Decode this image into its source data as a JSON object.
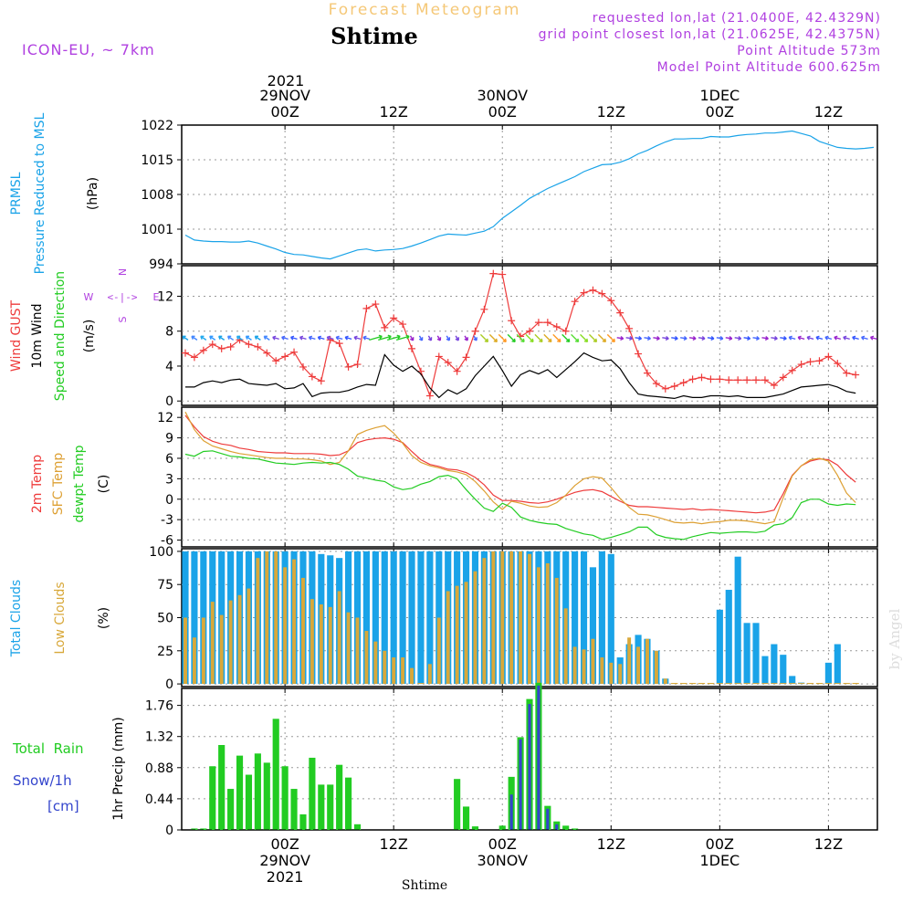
{
  "header": {
    "title": "Forecast Meteogram",
    "location": "Shtime",
    "model": "ICON-EU, ~ 7km",
    "requested": "requested lon,lat (21.0400E, 42.4329N)",
    "grid_point": "grid point closest lon,lat (21.0625E, 42.4375N)",
    "point_altitude": "Point Altitude 573m",
    "model_altitude": "Model Point Altitude 600.625m",
    "footer_location": "Shtime",
    "watermark": "by Angel"
  },
  "time_axis": {
    "top_year": "2021",
    "bottom_year": "2021",
    "ticks": [
      {
        "idx": 11,
        "hour": "00Z",
        "date": "29NOV"
      },
      {
        "idx": 23,
        "hour": "12Z",
        "date": ""
      },
      {
        "idx": 35,
        "hour": "00Z",
        "date": "30NOV"
      },
      {
        "idx": 47,
        "hour": "12Z",
        "date": ""
      },
      {
        "idx": 59,
        "hour": "00Z",
        "date": "1DEC"
      },
      {
        "idx": 71,
        "hour": "12Z",
        "date": ""
      }
    ]
  },
  "colors": {
    "pressure": "#1aa3e8",
    "gust": "#ee3b3b",
    "wind": "#000000",
    "temp2m": "#ee3b3b",
    "sfc_temp": "#dda033",
    "dewpt": "#22cc22",
    "total_clouds": "#1aa3e8",
    "low_clouds": "#d8a83a",
    "rain": "#22cc22",
    "snow": "#3344cc",
    "purple": "#b040e0",
    "title_orange": "#f5c878"
  },
  "chart_data": [
    {
      "type": "line",
      "panel": "pressure",
      "label_lines": [
        "PRMSL",
        "Pressure Reduced to MSL"
      ],
      "unit": "(hPa)",
      "ylim": [
        994,
        1022
      ],
      "yticks": [
        994,
        1001,
        1008,
        1015,
        1022
      ],
      "x": "hour index 0..76 (hourly from 28NOV 13Z)",
      "series": [
        {
          "name": "PRMSL",
          "color": "#1aa3e8",
          "values": [
            999.8,
            998.8,
            998.6,
            998.5,
            998.5,
            998.4,
            998.4,
            998.6,
            998.2,
            997.6,
            997.0,
            996.3,
            995.9,
            995.8,
            995.5,
            995.2,
            995.0,
            995.6,
            996.2,
            996.8,
            997.0,
            996.6,
            996.8,
            996.9,
            997.1,
            997.6,
            998.2,
            998.9,
            999.6,
            1000.0,
            999.9,
            999.8,
            1000.2,
            1000.6,
            1001.5,
            1003.2,
            1004.5,
            1005.8,
            1007.2,
            1008.2,
            1009.2,
            1010.0,
            1010.8,
            1011.6,
            1012.6,
            1013.3,
            1014.0,
            1014.1,
            1014.5,
            1015.2,
            1016.2,
            1016.9,
            1017.8,
            1018.6,
            1019.2,
            1019.2,
            1019.3,
            1019.3,
            1019.7,
            1019.6,
            1019.6,
            1019.9,
            1020.1,
            1020.2,
            1020.4,
            1020.4,
            1020.6,
            1020.8,
            1020.3,
            1019.8,
            1018.7,
            1018.1,
            1017.5,
            1017.3,
            1017.2,
            1017.3,
            1017.5
          ]
        }
      ]
    },
    {
      "type": "line",
      "panel": "wind",
      "label_lines": [
        "Wind GUST",
        "10m Wind",
        "Speed and Direction"
      ],
      "unit": "(m/s)",
      "compass": {
        "n": "N",
        "s": "S",
        "w": "W",
        "e": "E",
        "arrows": "<-|->"
      },
      "ylim": [
        -0.5,
        15.5
      ],
      "yticks": [
        0,
        4,
        8,
        12
      ],
      "series": [
        {
          "name": "Wind GUST",
          "color": "#ee3b3b",
          "values": [
            5.5,
            5.0,
            5.8,
            6.5,
            6.0,
            6.2,
            7.0,
            6.5,
            6.2,
            5.5,
            4.6,
            5.1,
            5.6,
            3.9,
            2.8,
            2.3,
            7.0,
            6.6,
            3.9,
            4.2,
            10.6,
            11.1,
            8.4,
            9.5,
            8.8,
            6.0,
            3.4,
            0.6,
            5.1,
            4.4,
            3.4,
            5.0,
            8.0,
            10.5,
            14.6,
            14.5,
            9.2,
            7.4,
            8.0,
            9.0,
            9.0,
            8.5,
            8.0,
            11.4,
            12.4,
            12.7,
            12.3,
            11.5,
            10.1,
            8.3,
            5.4,
            3.2,
            2.0,
            1.4,
            1.7,
            2.1,
            2.5,
            2.7,
            2.5,
            2.5,
            2.4,
            2.4,
            2.4,
            2.4,
            2.4,
            1.8,
            2.7,
            3.5,
            4.2,
            4.5,
            4.6,
            5.1,
            4.3,
            3.2,
            3.0
          ]
        },
        {
          "name": "10m Wind",
          "color": "#000000",
          "values": [
            1.6,
            1.6,
            2.1,
            2.3,
            2.1,
            2.4,
            2.5,
            2.0,
            1.9,
            1.8,
            2.0,
            1.4,
            1.5,
            2.0,
            0.5,
            0.9,
            1.0,
            1.0,
            1.2,
            1.6,
            1.9,
            1.8,
            5.3,
            4.1,
            3.4,
            4.0,
            3.1,
            1.5,
            0.4,
            1.3,
            0.8,
            1.4,
            2.9,
            4.0,
            5.1,
            3.5,
            1.7,
            3.0,
            3.5,
            3.1,
            3.6,
            2.7,
            3.6,
            4.5,
            5.5,
            5.0,
            4.6,
            4.7,
            3.7,
            2.1,
            0.8,
            0.6,
            0.5,
            0.4,
            0.3,
            0.6,
            0.4,
            0.4,
            0.6,
            0.6,
            0.5,
            0.6,
            0.4,
            0.4,
            0.4,
            0.6,
            0.8,
            1.2,
            1.6,
            1.7,
            1.8,
            1.9,
            1.6,
            1.1,
            0.9
          ]
        }
      ]
    },
    {
      "type": "line",
      "panel": "temperature",
      "label_lines": [
        "2m Temp",
        "SFC Temp",
        "dewpt Temp"
      ],
      "unit": "(C)",
      "ylim": [
        -7,
        13.5
      ],
      "yticks": [
        -6,
        -3,
        0,
        3,
        6,
        9,
        12
      ],
      "series": [
        {
          "name": "2m Temp",
          "color": "#ee3b3b",
          "values": [
            12.3,
            10.6,
            9.2,
            8.5,
            8.1,
            7.9,
            7.5,
            7.3,
            7.0,
            6.9,
            6.8,
            6.8,
            6.7,
            6.7,
            6.7,
            6.6,
            6.4,
            6.5,
            7.1,
            8.3,
            8.7,
            8.9,
            9.0,
            8.8,
            8.3,
            7.0,
            5.8,
            5.1,
            4.8,
            4.4,
            4.3,
            3.9,
            3.2,
            2.1,
            0.6,
            -0.2,
            -0.2,
            -0.3,
            -0.5,
            -0.6,
            -0.4,
            0.0,
            0.5,
            1.0,
            1.3,
            1.4,
            1.1,
            0.4,
            -0.3,
            -0.9,
            -1.1,
            -1.1,
            -1.2,
            -1.3,
            -1.4,
            -1.5,
            -1.4,
            -1.6,
            -1.5,
            -1.6,
            -1.7,
            -1.8,
            -1.9,
            -2.0,
            -1.9,
            -1.6,
            0.8,
            3.5,
            4.9,
            5.6,
            5.9,
            5.8,
            5.0,
            3.6,
            2.5
          ]
        },
        {
          "name": "SFC Temp",
          "color": "#dda033",
          "values": [
            12.8,
            10.2,
            8.6,
            7.8,
            7.4,
            7.0,
            6.7,
            6.5,
            6.3,
            6.1,
            6.0,
            6.0,
            5.9,
            5.9,
            5.8,
            5.6,
            5.1,
            5.4,
            7.1,
            9.5,
            10.1,
            10.5,
            10.8,
            9.7,
            8.2,
            6.4,
            5.4,
            4.9,
            4.6,
            4.2,
            4.0,
            3.6,
            2.6,
            1.2,
            -0.4,
            -1.5,
            -0.3,
            -0.6,
            -1.0,
            -1.2,
            -1.1,
            -0.5,
            0.6,
            2.0,
            3.0,
            3.3,
            3.1,
            1.7,
            0.1,
            -1.2,
            -2.2,
            -2.3,
            -2.6,
            -3.0,
            -3.4,
            -3.5,
            -3.4,
            -3.6,
            -3.4,
            -3.3,
            -3.1,
            -3.1,
            -3.2,
            -3.4,
            -3.6,
            -3.3,
            0.2,
            3.4,
            4.9,
            5.8,
            6.0,
            5.6,
            3.5,
            0.9,
            -0.5
          ]
        },
        {
          "name": "dewpt Temp",
          "color": "#22cc22",
          "values": [
            6.6,
            6.3,
            7.0,
            7.1,
            6.7,
            6.3,
            6.2,
            6.0,
            5.9,
            5.6,
            5.3,
            5.2,
            5.1,
            5.3,
            5.4,
            5.3,
            5.4,
            5.1,
            4.4,
            3.4,
            3.1,
            2.8,
            2.6,
            1.8,
            1.4,
            1.6,
            2.2,
            2.6,
            3.3,
            3.5,
            3.0,
            1.4,
            0.0,
            -1.3,
            -1.8,
            -0.6,
            -1.2,
            -2.6,
            -3.1,
            -3.4,
            -3.6,
            -3.7,
            -4.3,
            -4.7,
            -5.1,
            -5.3,
            -5.9,
            -5.6,
            -5.2,
            -4.8,
            -4.1,
            -4.1,
            -5.2,
            -5.6,
            -5.8,
            -5.9,
            -5.5,
            -5.2,
            -4.9,
            -5.0,
            -4.9,
            -4.8,
            -4.8,
            -4.9,
            -4.7,
            -3.8,
            -3.6,
            -2.7,
            -0.5,
            0.0,
            0.0,
            -0.7,
            -0.9,
            -0.7,
            -0.8
          ]
        }
      ]
    },
    {
      "type": "bar",
      "panel": "clouds",
      "label_lines": [
        "Total Clouds",
        "Low Clouds"
      ],
      "unit": "(%)",
      "ylim": [
        -2,
        102
      ],
      "yticks": [
        0,
        25,
        50,
        75,
        100
      ],
      "series": [
        {
          "name": "Total Clouds",
          "color": "#1aa3e8",
          "values": [
            100,
            100,
            100,
            100,
            100,
            100,
            100,
            100,
            100,
            100,
            100,
            100,
            100,
            100,
            100,
            98,
            97,
            95,
            100,
            100,
            100,
            100,
            100,
            100,
            100,
            100,
            100,
            100,
            100,
            100,
            100,
            100,
            100,
            100,
            100,
            100,
            100,
            100,
            100,
            100,
            100,
            100,
            100,
            100,
            100,
            88,
            100,
            98,
            20,
            30,
            37,
            34,
            25,
            4,
            0,
            0,
            0,
            0,
            0,
            56,
            71,
            96,
            46,
            46,
            21,
            30,
            22,
            6,
            1,
            0,
            0,
            16,
            30,
            0,
            0
          ]
        },
        {
          "name": "Low Clouds",
          "color": "#d8a83a",
          "values": [
            50,
            35,
            50,
            62,
            52,
            63,
            67,
            72,
            95,
            100,
            100,
            88,
            94,
            80,
            64,
            60,
            58,
            70,
            54,
            50,
            40,
            32,
            25,
            20,
            20,
            12,
            0,
            15,
            50,
            70,
            74,
            77,
            85,
            95,
            100,
            100,
            100,
            100,
            98,
            88,
            91,
            80,
            57,
            28,
            26,
            34,
            20,
            16,
            15,
            35,
            28,
            34,
            25,
            4,
            0,
            0,
            0,
            0,
            0,
            0,
            0,
            0,
            0,
            0,
            0,
            0,
            0,
            0,
            0,
            0,
            0,
            0,
            0,
            0,
            0
          ]
        }
      ]
    },
    {
      "type": "bar",
      "panel": "precip",
      "label_lines": [
        "Total  Rain",
        "Snow/1h",
        "[cm]"
      ],
      "unit": "1hr Precip (mm)",
      "ylim": [
        0,
        2.0
      ],
      "yticks": [
        0,
        0.44,
        0.88,
        1.32,
        1.76
      ],
      "series": [
        {
          "name": "Total Rain",
          "color": "#22cc22",
          "values": [
            0,
            0.02,
            0.02,
            0.9,
            1.2,
            0.58,
            1.05,
            0.78,
            1.08,
            0.95,
            1.57,
            0.9,
            0.58,
            0.22,
            1.02,
            0.64,
            0.64,
            0.92,
            0.74,
            0.08,
            0,
            0,
            0,
            0,
            0,
            0,
            0,
            0,
            0,
            0,
            0.72,
            0.33,
            0.05,
            0,
            0,
            0.06,
            0.75,
            1.31,
            1.85,
            2.08,
            0.34,
            0.12,
            0.06,
            0.02,
            0,
            0,
            0,
            0,
            0,
            0,
            0,
            0,
            0,
            0,
            0,
            0,
            0,
            0,
            0,
            0,
            0,
            0,
            0,
            0,
            0,
            0,
            0,
            0,
            0,
            0,
            0,
            0,
            0,
            0,
            0,
            0
          ]
        },
        {
          "name": "Snow/1h",
          "color": "#3344cc",
          "values": [
            0,
            0,
            0,
            0,
            0,
            0,
            0,
            0,
            0,
            0,
            0,
            0,
            0,
            0,
            0,
            0,
            0,
            0,
            0,
            0,
            0,
            0,
            0,
            0,
            0,
            0,
            0,
            0,
            0,
            0,
            0,
            0,
            0,
            0,
            0,
            0,
            0.5,
            1.28,
            1.78,
            2.04,
            0.3,
            0.08,
            0,
            0,
            0,
            0,
            0,
            0,
            0,
            0,
            0,
            0,
            0,
            0,
            0,
            0,
            0,
            0,
            0,
            0,
            0,
            0,
            0,
            0,
            0,
            0,
            0,
            0,
            0,
            0,
            0,
            0,
            0,
            0,
            0,
            0
          ]
        }
      ]
    }
  ]
}
